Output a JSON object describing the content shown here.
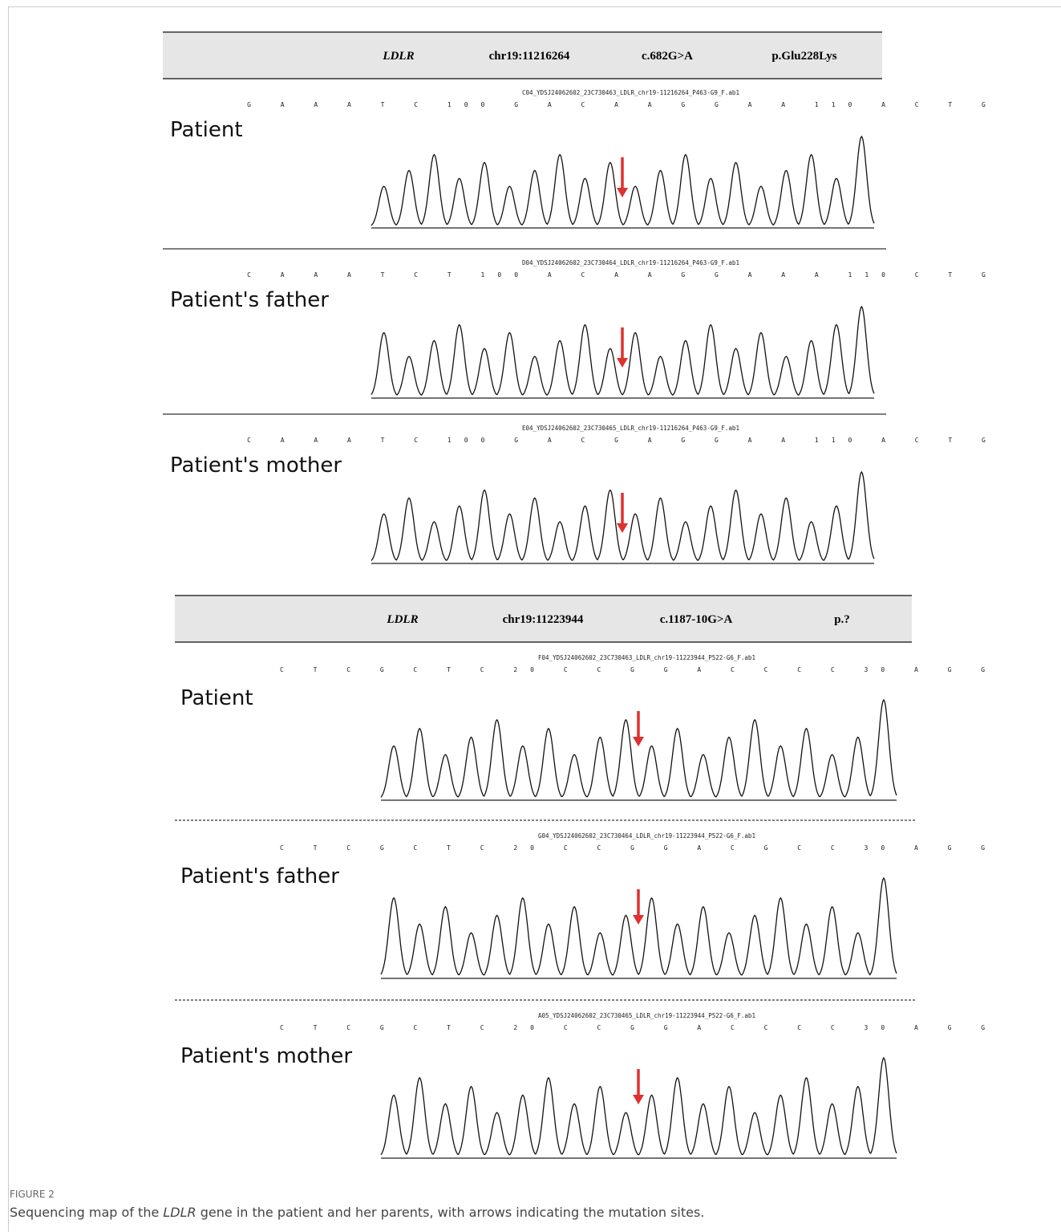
{
  "panels": [
    {
      "header": {
        "gene": "LDLR",
        "locus": "chr19:11216264",
        "change": "c.682G>A",
        "protein": "p.Glu228Lys"
      },
      "traces": [
        {
          "label": "Patient",
          "file": "C04_YDSJ24062602_23C730463_LDLR_chr19-11216264_P463-G9_F.ab1",
          "bases": "G A A A T C 100 G A C A A G G A A 110 A C T G"
        },
        {
          "label": "Patient's father",
          "file": "D04_YDSJ24062602_23C730464_LDLR_chr19-11216264_P463-G9_F.ab1",
          "bases": "C A A A T C T 100 A C A A G G A A A 110 C T G"
        },
        {
          "label": "Patient's mother",
          "file": "E04_YDSJ24062602_23C730465_LDLR_chr19-11216264_P463-G9_F.ab1",
          "bases": "C A A A T C 100 G A C G A G G A A 110 A C T G"
        }
      ]
    },
    {
      "header": {
        "gene": "LDLR",
        "locus": "chr19:11223944",
        "change": "c.1187-10G>A",
        "protein": "p.?"
      },
      "traces": [
        {
          "label": "Patient",
          "file": "F04_YDSJ24062602_23C730463_LDLR_chr19-11223944_P522-G6_F.ab1",
          "bases": "C T C G C T C 20 C C G G A C C C C 30 A G G"
        },
        {
          "label": "Patient's father",
          "file": "G04_YDSJ24062602_23C730464_LDLR_chr19-11223944_P522-G6_F.ab1",
          "bases": "C T C G C T C 20 C C G G A C G C C 30 A G G"
        },
        {
          "label": "Patient's mother",
          "file": "A05_YDSJ24062602_23C730465_LDLR_chr19-11223944_P522-G6_F.ab1",
          "bases": "C T C G C T C 20 C C G G A C C C C 30 A G G"
        }
      ]
    }
  ],
  "caption": {
    "figure": "FIGURE 2",
    "text": [
      "Sequencing map of the ",
      "LDLR",
      " gene in the patient and her parents, with arrows indicating the mutation sites."
    ]
  }
}
